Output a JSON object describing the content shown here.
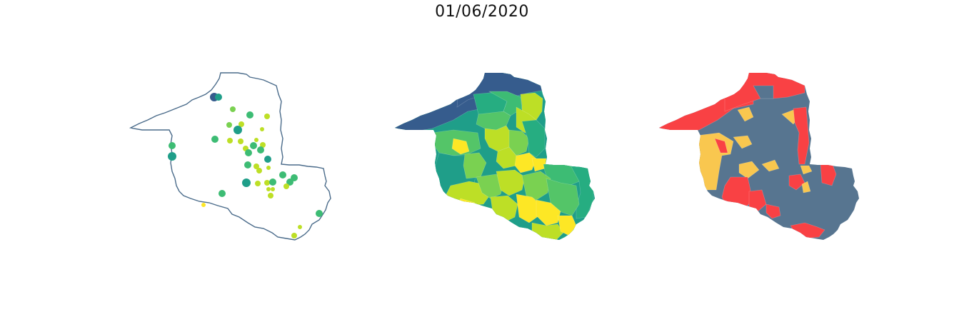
{
  "title": "01/06/2020",
  "palette": {
    "outline": "#4a6b8a",
    "viridis": [
      "#365c8d",
      "#1f9e89",
      "#26ad81",
      "#3dbc74",
      "#54c568",
      "#7ad151",
      "#bddf26",
      "#fde725"
    ],
    "risk": {
      "high": "#f94144",
      "medium": "#f9c74f",
      "low": "#577590"
    }
  },
  "chart_data": [
    {
      "type": "map",
      "style": "proportional-symbols"
    },
    {
      "type": "map",
      "style": "choropleth-viridis"
    },
    {
      "type": "map",
      "style": "choropleth-risk-categories"
    }
  ]
}
